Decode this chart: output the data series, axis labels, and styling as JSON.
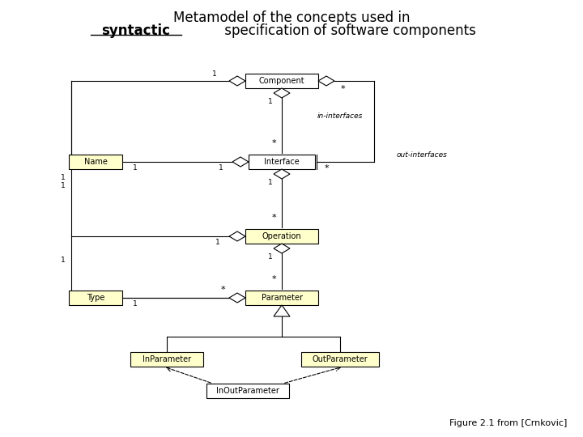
{
  "title_line1": "Metamodel of the concepts used in",
  "title_line2_bold": "syntactic",
  "title_line2_rest": " specification of software components",
  "bg_color": "#ffffff",
  "box_fill": "#ffffcc",
  "box_fill_white": "#ffffff",
  "box_border": "#000000",
  "line_color": "#000000",
  "text_color": "#000000",
  "figure_caption": "Figure 2.1 from [Crnkovic]",
  "diamond_size": 0.013
}
